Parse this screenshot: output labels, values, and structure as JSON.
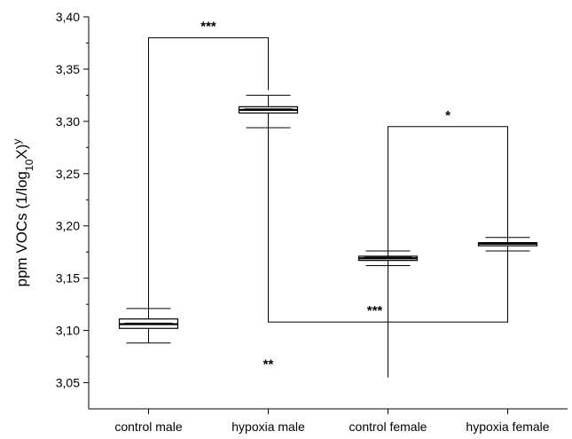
{
  "chart_data": {
    "type": "box",
    "ylabel": "ppm VOCs (1/log",
    "ylabel_sub": "10",
    "ylabel_tail": "X)",
    "ylabel_sup": "y",
    "ylim": [
      3.025,
      3.4
    ],
    "yticks": [
      3.05,
      3.1,
      3.15,
      3.2,
      3.25,
      3.3,
      3.35,
      3.4
    ],
    "ytick_labels": [
      "3,05",
      "3,10",
      "3,15",
      "3,20",
      "3,25",
      "3,30",
      "3,35",
      "3,40"
    ],
    "categories": [
      "control male",
      "hypoxia male",
      "control female",
      "hypoxia female"
    ],
    "boxes": [
      {
        "whisker_low": 3.088,
        "q1": 3.102,
        "median": 3.106,
        "mean": 3.107,
        "q3": 3.111,
        "whisker_high": 3.121
      },
      {
        "whisker_low": 3.294,
        "q1": 3.308,
        "median": 3.311,
        "mean": 3.312,
        "q3": 3.314,
        "whisker_high": 3.325
      },
      {
        "whisker_low": 3.162,
        "q1": 3.167,
        "median": 3.169,
        "mean": 3.17,
        "q3": 3.171,
        "whisker_high": 3.176
      },
      {
        "whisker_low": 3.176,
        "q1": 3.181,
        "median": 3.183,
        "mean": 3.183,
        "q3": 3.184,
        "whisker_high": 3.189
      }
    ],
    "brackets": [
      {
        "from": 0,
        "to": 1,
        "y": 3.38,
        "from_bottom": 3.12,
        "to_bottom": 3.33,
        "label": "***"
      },
      {
        "from": 2,
        "to": 3,
        "y": 3.295,
        "from_bottom": 3.176,
        "to_bottom": 3.189,
        "label": "*"
      },
      {
        "from": 1,
        "to": 3,
        "y": 3.108,
        "from_bottom": 3.294,
        "to_bottom": 3.176,
        "label": "***",
        "inverted": true
      }
    ],
    "extra_lines": [
      {
        "category": 2,
        "y_from": 3.055,
        "y_to": 3.162
      }
    ],
    "annotations": [
      {
        "text": "**",
        "category": 1,
        "y": 3.068
      }
    ]
  }
}
